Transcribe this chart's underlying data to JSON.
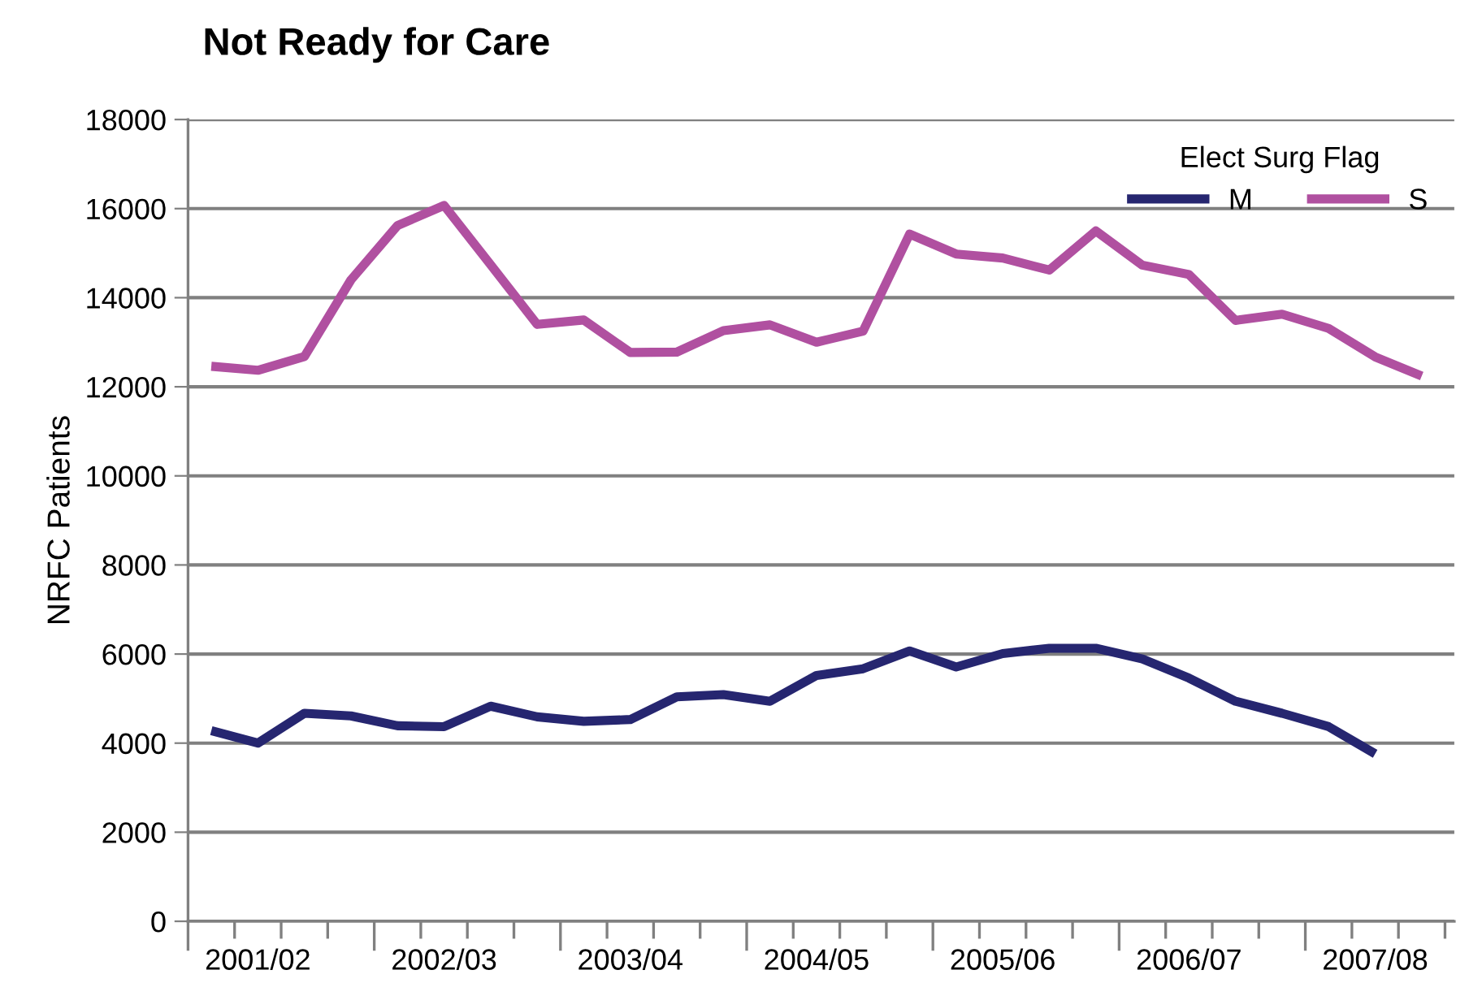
{
  "chart_data": {
    "type": "line",
    "title": "Not Ready for Care",
    "ylabel": "NRFC Patients",
    "legend_title": "Elect Surg Flag",
    "categories": [
      null,
      "2001/02",
      null,
      null,
      null,
      "2002/03",
      null,
      null,
      null,
      "2003/04",
      null,
      null,
      null,
      "2004/05",
      null,
      null,
      null,
      "2005/06",
      null,
      null,
      null,
      "2006/07",
      null,
      null,
      null,
      "2007/08",
      null
    ],
    "series": [
      {
        "name": "M",
        "color": "#262670",
        "values": [
          4280,
          4000,
          4670,
          4610,
          4390,
          4370,
          4830,
          4590,
          4490,
          4530,
          5040,
          5090,
          4940,
          5520,
          5670,
          6070,
          5710,
          6010,
          6130,
          6130,
          5890,
          5460,
          4940,
          4670,
          4370,
          3760,
          null
        ]
      },
      {
        "name": "S",
        "color": "#b050a0",
        "values": [
          12460,
          12370,
          12680,
          14400,
          15620,
          16070,
          14740,
          13400,
          13500,
          12770,
          12780,
          13260,
          13390,
          13000,
          13250,
          15430,
          14980,
          14890,
          14620,
          15500,
          14730,
          14520,
          13490,
          13630,
          13310,
          12670,
          12240
        ]
      }
    ],
    "ylim": [
      0,
      18000
    ],
    "yticks": [
      0,
      2000,
      4000,
      6000,
      8000,
      10000,
      12000,
      14000,
      16000,
      18000
    ],
    "grid": "y",
    "legend": "top right",
    "marker": "none",
    "line_style": "solid"
  }
}
